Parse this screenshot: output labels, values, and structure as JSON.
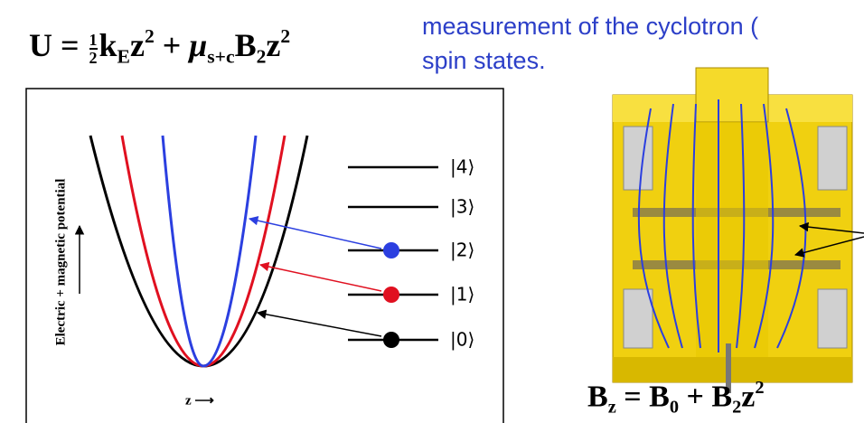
{
  "formula_top": {
    "parts": [
      "U",
      "=",
      "1",
      "2",
      "k",
      "E",
      "z",
      "2",
      "+",
      "μ",
      "s+c",
      "B",
      "2",
      "z",
      "2"
    ]
  },
  "description": {
    "lines": [
      "measurement of the cyclotron (",
      "spin states."
    ]
  },
  "plot": {
    "y_label": "Electric + magnetic potential",
    "x_label": "z ⟶"
  },
  "levels": [
    "|4⟩",
    "|3⟩",
    "|2⟩",
    "|1⟩",
    "|0⟩"
  ],
  "formula_bottom": {
    "parts": [
      "B",
      "z",
      "=",
      "B",
      "0",
      "+",
      "B",
      "2",
      "z",
      "2"
    ]
  }
}
